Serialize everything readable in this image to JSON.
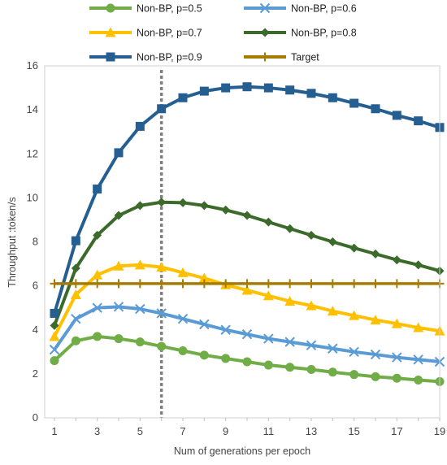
{
  "chart_data": {
    "type": "line",
    "xlabel": "Num of generations per epoch",
    "ylabel": "Throughput :token/s",
    "xlim": [
      1,
      19
    ],
    "ylim": [
      0,
      16
    ],
    "x_ticks": [
      1,
      3,
      5,
      7,
      9,
      11,
      13,
      15,
      17,
      19
    ],
    "y_ticks": [
      0,
      2,
      4,
      6,
      8,
      10,
      12,
      14,
      16
    ],
    "grid": false,
    "legend_position": "top",
    "x": [
      1,
      2,
      3,
      4,
      5,
      6,
      7,
      8,
      9,
      10,
      11,
      12,
      13,
      14,
      15,
      16,
      17,
      18,
      19
    ],
    "vertical_marker_x": 6,
    "series": [
      {
        "name": "Non-BP, p=0.5",
        "marker": "circle",
        "color": "#70ad47",
        "values": [
          2.6,
          3.5,
          3.7,
          3.6,
          3.45,
          3.25,
          3.05,
          2.85,
          2.7,
          2.55,
          2.4,
          2.3,
          2.2,
          2.08,
          1.97,
          1.87,
          1.8,
          1.72,
          1.65
        ]
      },
      {
        "name": "Non-BP, p=0.6",
        "marker": "x",
        "color": "#5b9bd5",
        "values": [
          3.1,
          4.5,
          5.0,
          5.05,
          4.95,
          4.75,
          4.5,
          4.25,
          4.0,
          3.8,
          3.6,
          3.45,
          3.3,
          3.15,
          3.0,
          2.88,
          2.75,
          2.65,
          2.55
        ]
      },
      {
        "name": "Non-BP, p=0.7",
        "marker": "triangle",
        "color": "#ffc000",
        "values": [
          3.7,
          5.6,
          6.5,
          6.9,
          6.95,
          6.85,
          6.6,
          6.35,
          6.05,
          5.8,
          5.55,
          5.3,
          5.1,
          4.85,
          4.65,
          4.45,
          4.28,
          4.1,
          3.95
        ]
      },
      {
        "name": "Non-BP, p=0.8",
        "marker": "diamond",
        "color": "#3b6a2b",
        "values": [
          4.2,
          6.8,
          8.3,
          9.2,
          9.65,
          9.8,
          9.78,
          9.65,
          9.45,
          9.2,
          8.9,
          8.6,
          8.3,
          8.0,
          7.72,
          7.45,
          7.18,
          6.95,
          6.68
        ]
      },
      {
        "name": "Non-BP, p=0.9",
        "marker": "square",
        "color": "#255e91",
        "values": [
          4.75,
          8.05,
          10.4,
          12.05,
          13.25,
          14.05,
          14.55,
          14.85,
          15.0,
          15.05,
          15.0,
          14.9,
          14.75,
          14.55,
          14.3,
          14.05,
          13.75,
          13.5,
          13.2
        ]
      },
      {
        "name": "Target",
        "marker": "plus",
        "color": "#a67c00",
        "values": [
          6.1,
          6.1,
          6.1,
          6.1,
          6.1,
          6.1,
          6.1,
          6.1,
          6.1,
          6.1,
          6.1,
          6.1,
          6.1,
          6.1,
          6.1,
          6.1,
          6.1,
          6.1,
          6.1
        ]
      }
    ]
  }
}
